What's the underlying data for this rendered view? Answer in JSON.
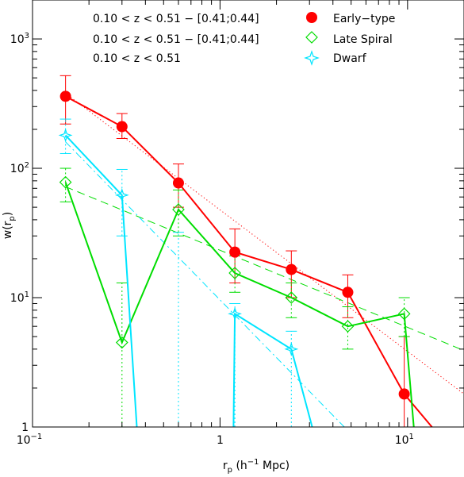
{
  "chart_data": {
    "type": "line",
    "xscale": "log",
    "yscale": "log",
    "xlim": [
      0.1,
      20
    ],
    "ylim": [
      1,
      2000
    ],
    "xlabel": "r_p (h^-1 Mpc)",
    "ylabel": "w(r_p)",
    "x_ticks": [
      {
        "value": 0.1,
        "label": "10^-1"
      },
      {
        "value": 1,
        "label": "1"
      },
      {
        "value": 10,
        "label": "10^1"
      }
    ],
    "y_ticks": [
      {
        "value": 1,
        "label": "1"
      },
      {
        "value": 10,
        "label": "10^1"
      },
      {
        "value": 100,
        "label": "10^2"
      },
      {
        "value": 1000,
        "label": "10^3"
      }
    ],
    "annotations": [
      "0.10 < z < 0.51 − [0.41;0.44]",
      "0.10 < z < 0.51 − [0.41;0.44]",
      "0.10 < z < 0.51"
    ],
    "legend_position": "top-right",
    "series": [
      {
        "name": "Early−type",
        "color": "#ff0000",
        "marker": "filled-circle",
        "points": [
          {
            "x": 0.15,
            "y": 360,
            "lo": 220,
            "hi": 520
          },
          {
            "x": 0.3,
            "y": 210,
            "lo": 170,
            "hi": 265
          },
          {
            "x": 0.6,
            "y": 77,
            "lo": 50,
            "hi": 108
          },
          {
            "x": 1.2,
            "y": 22.5,
            "lo": 13,
            "hi": 34
          },
          {
            "x": 2.4,
            "y": 16.5,
            "lo": 10,
            "hi": 23
          },
          {
            "x": 4.8,
            "y": 11,
            "lo": 7,
            "hi": 15
          },
          {
            "x": 9.6,
            "y": 1.8,
            "lo": 1,
            "hi": 5
          }
        ],
        "line_to": {
          "x": 13.5,
          "y": 1
        },
        "fit": {
          "style": "dotted",
          "x": [
            0.15,
            20
          ],
          "y": [
            380,
            1.8
          ]
        }
      },
      {
        "name": "Late Spiral",
        "color": "#00dd00",
        "marker": "open-diamond",
        "points": [
          {
            "x": 0.15,
            "y": 78,
            "lo": 55,
            "hi": 100
          },
          {
            "x": 0.3,
            "y": 4.5,
            "lo": 1,
            "hi": 13
          },
          {
            "x": 0.6,
            "y": 48,
            "lo": 30,
            "hi": 68
          },
          {
            "x": 1.2,
            "y": 15.5,
            "lo": 11,
            "hi": 21
          },
          {
            "x": 2.4,
            "y": 10,
            "lo": 7,
            "hi": 13
          },
          {
            "x": 4.8,
            "y": 6,
            "lo": 4,
            "hi": 8.5
          },
          {
            "x": 9.6,
            "y": 7.5,
            "lo": 5,
            "hi": 10
          }
        ],
        "line_to": {
          "x": 10.8,
          "y": 1
        },
        "fit": {
          "style": "dashed",
          "x": [
            0.15,
            20
          ],
          "y": [
            72,
            3.9
          ]
        }
      },
      {
        "name": "Dwarf",
        "color": "#00e5ff",
        "marker": "open-star",
        "points": [
          {
            "x": 0.15,
            "y": 180,
            "lo": 130,
            "hi": 240
          },
          {
            "x": 0.3,
            "y": 62,
            "lo": 30,
            "hi": 98
          },
          {
            "x": 0.6,
            "y": 0.5,
            "lo": 0.5,
            "hi": 32
          },
          {
            "x": 1.2,
            "y": 7.5,
            "lo": 1,
            "hi": 9
          },
          {
            "x": 2.4,
            "y": 4,
            "lo": 1,
            "hi": 5.5
          }
        ],
        "segments": [
          [
            {
              "x": 0.15,
              "y": 180
            },
            {
              "x": 0.3,
              "y": 62
            },
            {
              "x": 0.36,
              "y": 1
            }
          ],
          [
            {
              "x": 1.18,
              "y": 1
            },
            {
              "x": 1.2,
              "y": 7.5
            },
            {
              "x": 2.4,
              "y": 4
            },
            {
              "x": 3.1,
              "y": 1
            }
          ]
        ],
        "fit": {
          "style": "dash-dot",
          "x": [
            0.15,
            4.6
          ],
          "y": [
            160,
            1
          ]
        }
      }
    ]
  }
}
